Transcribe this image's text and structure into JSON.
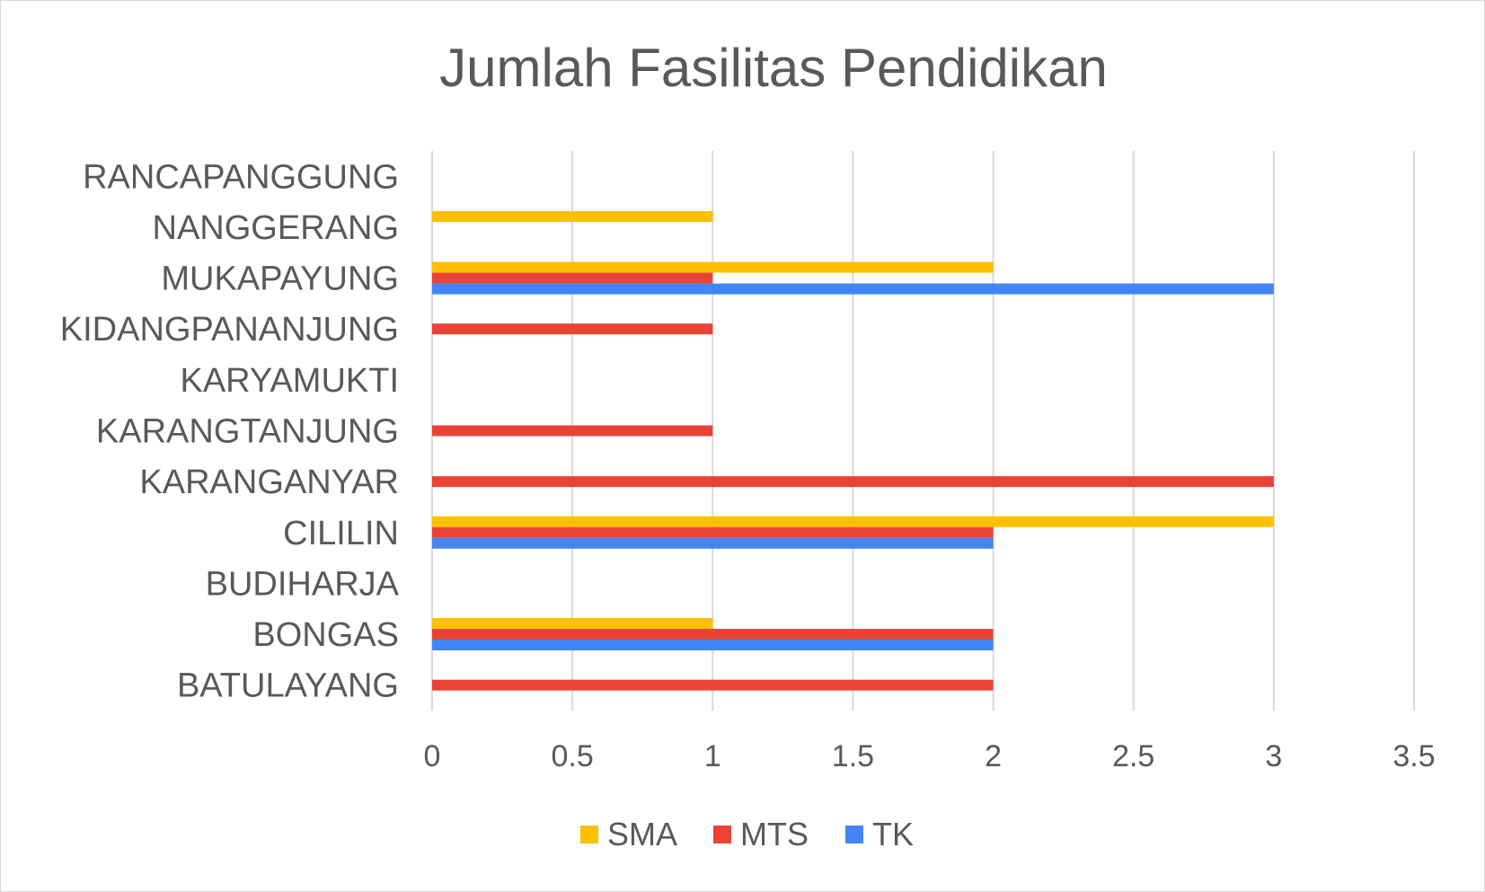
{
  "chart_data": {
    "type": "bar",
    "orientation": "horizontal",
    "title": "Jumlah Fasilitas Pendidikan",
    "xlabel": "",
    "ylabel": "",
    "xlim": [
      0,
      3.5
    ],
    "xticks": [
      0,
      0.5,
      1,
      1.5,
      2,
      2.5,
      3,
      3.5
    ],
    "xtick_labels": [
      "0",
      "0.5",
      "1",
      "1.5",
      "2",
      "2.5",
      "3",
      "3.5"
    ],
    "grid": true,
    "legend_position": "bottom",
    "categories": [
      "BATULAYANG",
      "BONGAS",
      "BUDIHARJA",
      "CILILIN",
      "KARANGANYAR",
      "KARANGTANJUNG",
      "KARYAMUKTI",
      "KIDANGPANANJUNG",
      "MUKAPAYUNG",
      "NANGGERANG",
      "RANCAPANGGUNG"
    ],
    "series": [
      {
        "name": "SMA",
        "color": "#ffc000",
        "values": [
          0,
          1,
          0,
          3,
          0,
          0,
          0,
          0,
          2,
          1,
          0
        ]
      },
      {
        "name": "MTS",
        "color": "#ea4335",
        "values": [
          2,
          2,
          0,
          2,
          3,
          1,
          0,
          1,
          1,
          0,
          0
        ]
      },
      {
        "name": "TK",
        "color": "#4285f4",
        "values": [
          0,
          2,
          0,
          2,
          0,
          0,
          0,
          0,
          3,
          0,
          0
        ]
      }
    ]
  }
}
